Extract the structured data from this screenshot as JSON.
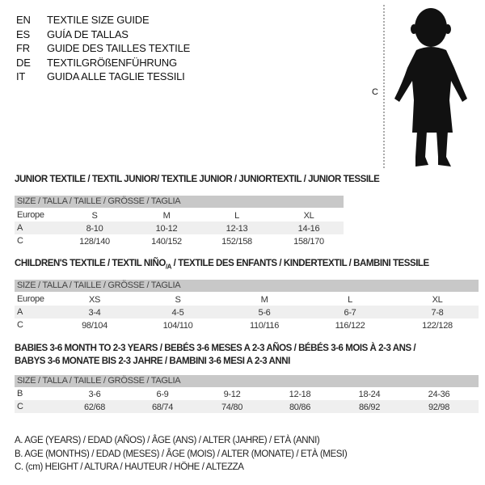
{
  "languages": [
    {
      "code": "EN",
      "text": "TEXTILE SIZE GUIDE"
    },
    {
      "code": "ES",
      "text": "GUÍA DE TALLAS"
    },
    {
      "code": "FR",
      "text": "GUIDE DES TAILLES TEXTILE"
    },
    {
      "code": "DE",
      "text": "TEXTILGRÖßENFÜHRUNG"
    },
    {
      "code": "IT",
      "text": "GUIDA ALLE TAGLIE TESSILI"
    }
  ],
  "figure": {
    "measure_label": "C"
  },
  "size_header": "SIZE / TALLA / TAILLE / GRÖSSE / TAGLIA",
  "junior": {
    "title": "JUNIOR TEXTILE / TEXTIL JUNIOR/ TEXTILE JUNIOR / JUNIORTEXTIL / JUNIOR TESSILE",
    "rows": [
      {
        "label": "Europe",
        "values": [
          "S",
          "M",
          "L",
          "XL"
        ]
      },
      {
        "label": "A",
        "values": [
          "8-10",
          "10-12",
          "12-13",
          "14-16"
        ]
      },
      {
        "label": "C",
        "values": [
          "128/140",
          "140/152",
          "152/158",
          "158/170"
        ]
      }
    ]
  },
  "children": {
    "title_main": "CHILDREN'S TEXTILE / TEXTIL NIÑO",
    "title_sub": "/A",
    "title_rest": " / TEXTILE DES ENFANTS / KINDERTEXTIL / BAMBINI TESSILE",
    "rows": [
      {
        "label": "Europe",
        "values": [
          "XS",
          "S",
          "M",
          "L",
          "XL"
        ]
      },
      {
        "label": "A",
        "values": [
          "3-4",
          "4-5",
          "5-6",
          "6-7",
          "7-8"
        ]
      },
      {
        "label": "C",
        "values": [
          "98/104",
          "104/110",
          "110/116",
          "116/122",
          "122/128"
        ]
      }
    ]
  },
  "babies": {
    "title_line1": "BABIES 3-6 MONTH TO 2-3 YEARS / BEBÉS 3-6 MESES A 2-3 AÑOS / BÉBÉS 3-6 MOIS À 2-3 ANS /",
    "title_line2": "BABYS 3-6 MONATE BIS 2-3 JAHRE / BAMBINI 3-6 MESI A 2-3 ANNI",
    "rows": [
      {
        "label": "B",
        "values": [
          "3-6",
          "6-9",
          "9-12",
          "12-18",
          "18-24",
          "24-36"
        ]
      },
      {
        "label": "C",
        "values": [
          "62/68",
          "68/74",
          "74/80",
          "80/86",
          "86/92",
          "92/98"
        ]
      }
    ]
  },
  "legend": [
    "A. AGE (YEARS) / EDAD (AÑOS) / ÂGE (ANS) / ALTER (JAHRE) / ETÀ (ANNI)",
    "B. AGE (MONTHS) / EDAD (MESES) / ÂGE (MOIS) / ALTER (MONATE) / ETÀ (MESI)",
    "C. (cm) HEIGHT / ALTURA / HAUTEUR / HÖHE / ALTEZZA"
  ]
}
